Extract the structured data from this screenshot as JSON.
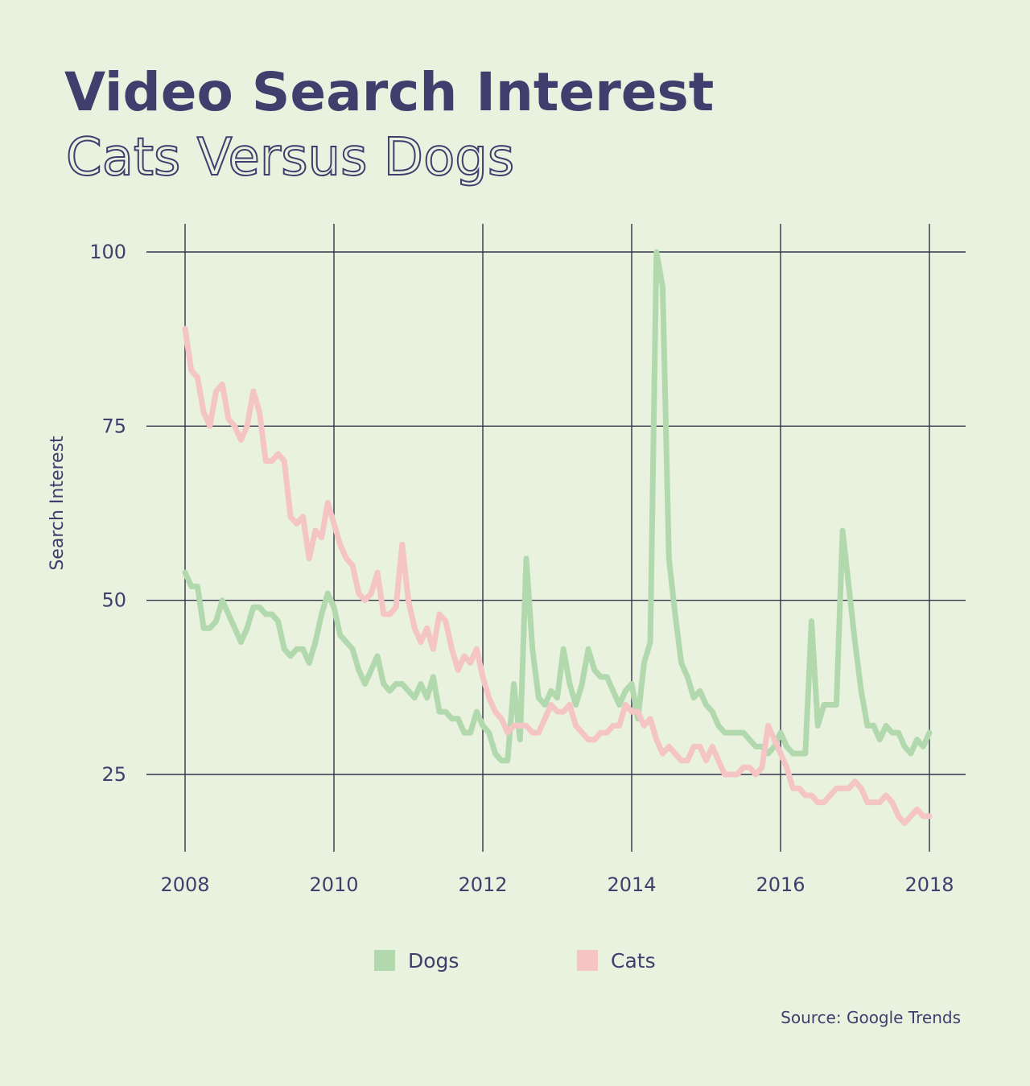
{
  "chart_data": {
    "type": "line",
    "title": "Video Search Interest",
    "subtitle": "Cats Versus Dogs",
    "ylabel": "Search Interest",
    "xlabel": "",
    "xlim": [
      2008,
      2018
    ],
    "ylim": [
      15,
      104
    ],
    "x_ticks": [
      2008,
      2010,
      2012,
      2014,
      2016,
      2018
    ],
    "y_ticks": [
      25,
      50,
      75,
      100
    ],
    "grid": true,
    "legend_position": "bottom-center",
    "source": "Source: Google Trends",
    "x_start": 2008,
    "x_step_months": 1,
    "series": [
      {
        "name": "Dogs",
        "color": "#b2d9ae",
        "values": [
          54,
          52,
          52,
          46,
          46,
          47,
          50,
          48,
          46,
          44,
          46,
          49,
          49,
          48,
          48,
          47,
          43,
          42,
          43,
          43,
          41,
          44,
          48,
          51,
          49,
          45,
          44,
          43,
          40,
          38,
          40,
          42,
          38,
          37,
          38,
          38,
          37,
          36,
          38,
          36,
          39,
          34,
          34,
          33,
          33,
          31,
          31,
          34,
          32,
          31,
          28,
          27,
          27,
          38,
          30,
          56,
          43,
          36,
          35,
          37,
          36,
          43,
          38,
          35,
          38,
          43,
          40,
          39,
          39,
          37,
          35,
          37,
          38,
          33,
          41,
          44,
          100,
          95,
          56,
          48,
          41,
          39,
          36,
          37,
          35,
          34,
          32,
          31,
          31,
          31,
          31,
          30,
          29,
          29,
          28,
          29,
          31,
          29,
          28,
          28,
          28,
          47,
          32,
          35,
          35,
          35,
          60,
          52,
          44,
          37,
          32,
          32,
          30,
          32,
          31,
          31,
          29,
          28,
          30,
          29,
          31
        ]
      },
      {
        "name": "Cats",
        "color": "#f5c4c4",
        "values": [
          89,
          83,
          82,
          77,
          75,
          80,
          81,
          76,
          75,
          73,
          75,
          80,
          77,
          70,
          70,
          71,
          70,
          62,
          61,
          62,
          56,
          60,
          59,
          64,
          61,
          58,
          56,
          55,
          51,
          50,
          51,
          54,
          48,
          48,
          49,
          58,
          50,
          46,
          44,
          46,
          43,
          48,
          47,
          43,
          40,
          42,
          41,
          43,
          39,
          36,
          34,
          33,
          31,
          32,
          32,
          32,
          31,
          31,
          33,
          35,
          34,
          34,
          35,
          32,
          31,
          30,
          30,
          31,
          31,
          32,
          32,
          35,
          34,
          34,
          32,
          33,
          30,
          28,
          29,
          28,
          27,
          27,
          29,
          29,
          27,
          29,
          27,
          25,
          25,
          25,
          26,
          26,
          25,
          26,
          32,
          30,
          28,
          26,
          23,
          23,
          22,
          22,
          21,
          21,
          22,
          23,
          23,
          23,
          24,
          23,
          21,
          21,
          21,
          22,
          21,
          19,
          18,
          19,
          20,
          19,
          19
        ]
      }
    ]
  }
}
